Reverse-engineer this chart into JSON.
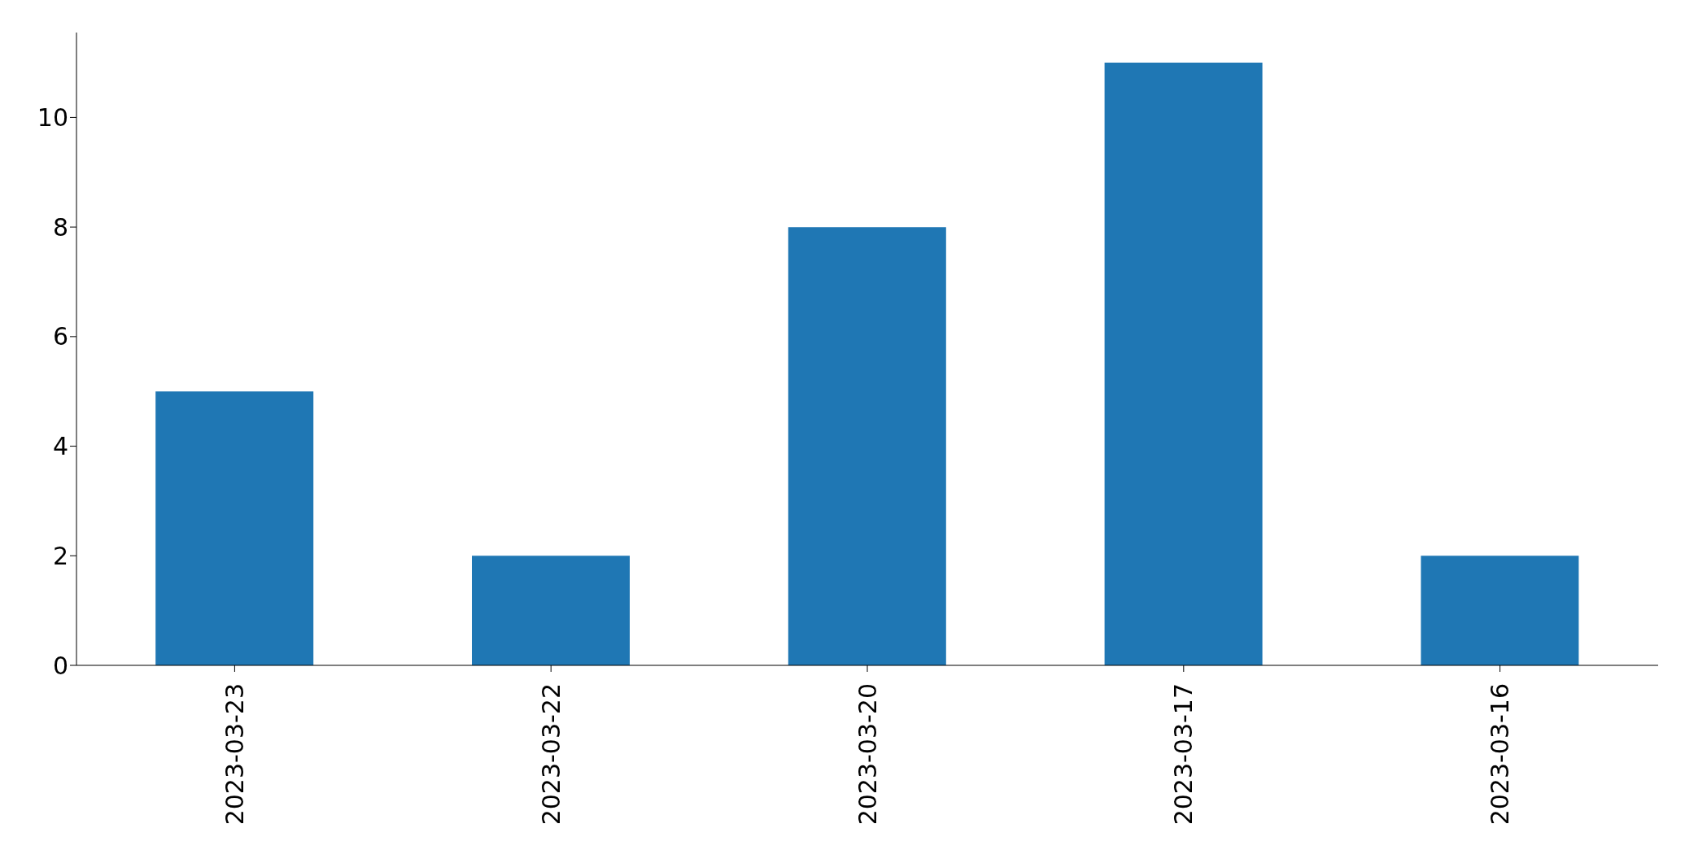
{
  "chart_data": {
    "type": "bar",
    "categories": [
      "2023-03-23",
      "2023-03-22",
      "2023-03-20",
      "2023-03-17",
      "2023-03-16"
    ],
    "values": [
      5,
      2,
      8,
      11,
      2
    ],
    "color": "#1f77b4",
    "ylim": [
      0,
      11.55
    ],
    "yticks": [
      0,
      2,
      4,
      6,
      8,
      10
    ],
    "grid": false,
    "legend": false
  }
}
